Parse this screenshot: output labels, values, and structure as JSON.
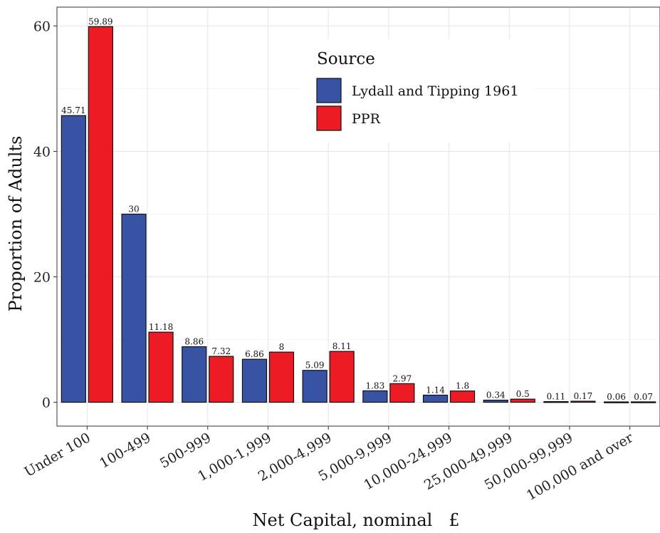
{
  "chart_data": {
    "type": "bar",
    "title": "",
    "xlabel": "Net Capital, nominal   £",
    "ylabel": "Proportion of Adults",
    "ylim": [
      -3.8,
      63
    ],
    "yticks": [
      0,
      20,
      40,
      60
    ],
    "grid": true,
    "legend": {
      "title": "Source",
      "position": "top-right"
    },
    "categories": [
      "Under 100",
      "100-499",
      "500-999",
      "1,000-1,999",
      "2,000-4,999",
      "5,000-9,999",
      "10,000-24,999",
      "25,000-49,999",
      "50,000-99,999",
      "100,000 and over"
    ],
    "series": [
      {
        "name": "Lydall and Tipping 1961",
        "color": "#3953a4",
        "values": [
          45.71,
          30,
          8.86,
          6.86,
          5.09,
          1.83,
          1.14,
          0.34,
          0.11,
          0.06
        ]
      },
      {
        "name": "PPR",
        "color": "#ed1c24",
        "values": [
          59.89,
          11.18,
          7.32,
          8,
          8.11,
          2.97,
          1.8,
          0.5,
          0.17,
          0.07
        ]
      }
    ]
  }
}
